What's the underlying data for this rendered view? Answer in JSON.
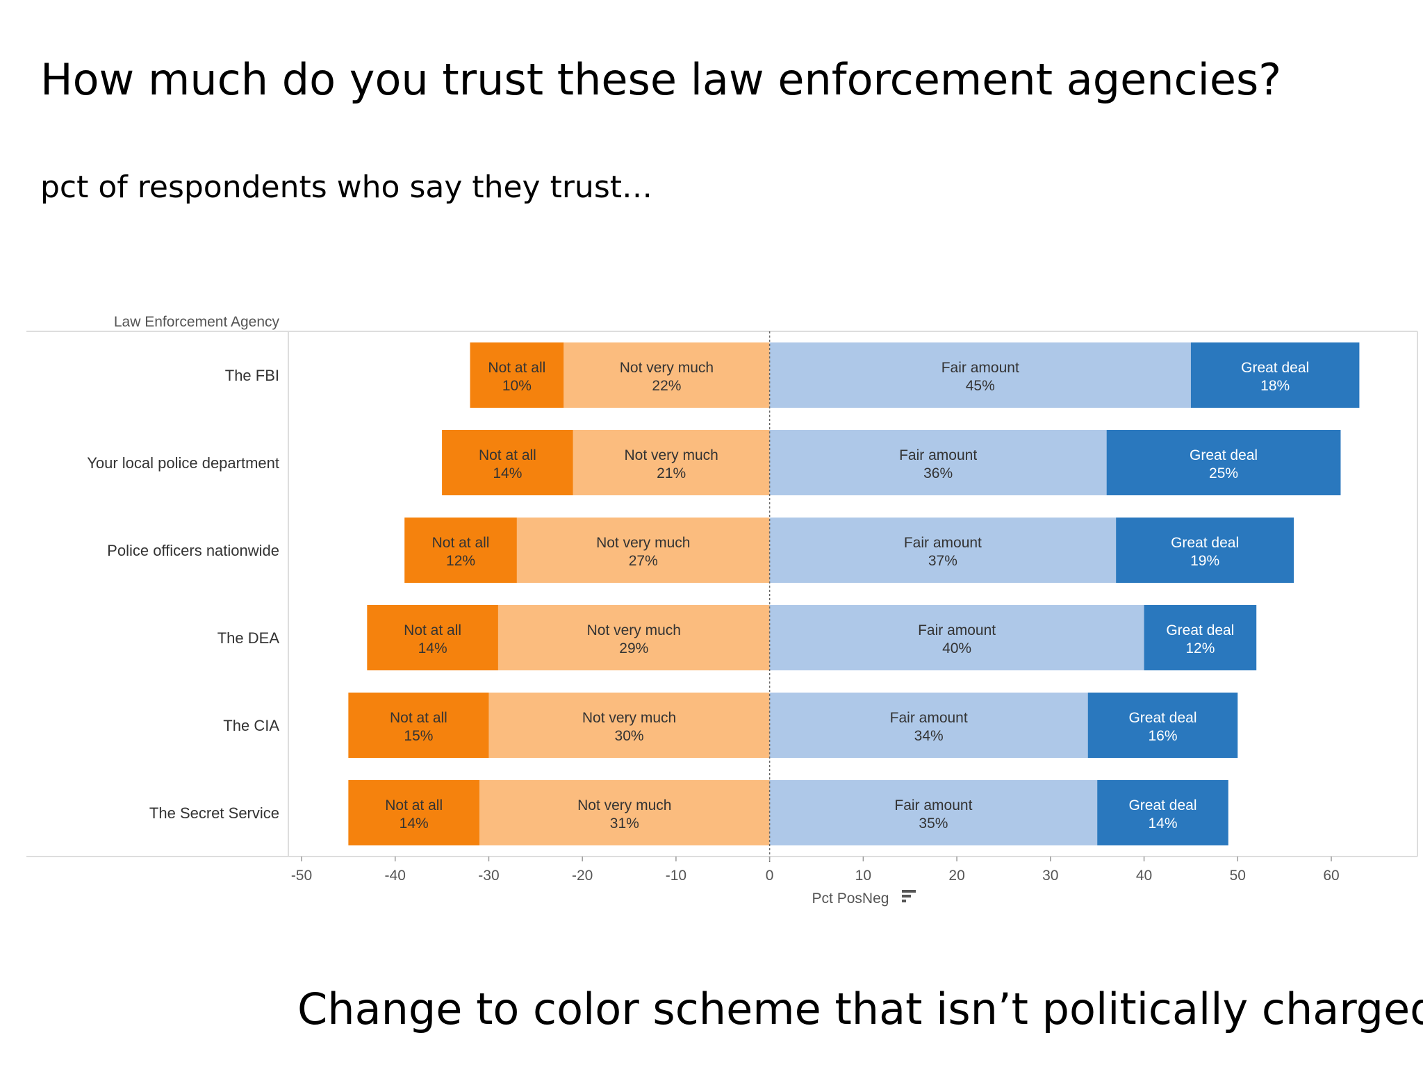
{
  "slide": {
    "title": "How much do you trust these law enforcement agencies?",
    "subtitle": "pct of respondents who say they trust…",
    "note": "Change to color scheme that isn’t politically charged"
  },
  "chart_data": {
    "type": "bar",
    "orientation": "horizontal-diverging-stacked",
    "row_header": "Law Enforcement Agency",
    "xlabel": "Pct PosNeg",
    "xlim": [
      -50,
      60
    ],
    "xticks": [
      -50,
      -40,
      -30,
      -20,
      -10,
      0,
      10,
      20,
      30,
      40,
      50,
      60
    ],
    "categories": [
      "The FBI",
      "Your local police department",
      "Police officers nationwide",
      "The DEA",
      "The CIA",
      "The Secret Service"
    ],
    "series": [
      {
        "name": "Not at all",
        "side": "negative",
        "color": "#f5820d",
        "values": [
          10,
          14,
          12,
          14,
          15,
          14
        ]
      },
      {
        "name": "Not very much",
        "side": "negative",
        "color": "#fbbc7e",
        "values": [
          22,
          21,
          27,
          29,
          30,
          31
        ]
      },
      {
        "name": "Fair amount",
        "side": "positive",
        "color": "#aec8e8",
        "values": [
          45,
          36,
          37,
          40,
          34,
          35
        ]
      },
      {
        "name": "Great deal",
        "side": "positive",
        "color": "#2a78be",
        "values": [
          18,
          25,
          19,
          12,
          16,
          14
        ]
      }
    ],
    "negative_stack_order": [
      "Not very much",
      "Not at all"
    ],
    "positive_stack_order": [
      "Fair amount",
      "Great deal"
    ],
    "colors": {
      "grid_zero_line": "#666666",
      "frame": "#dddddd",
      "label_dark": "#333333",
      "label_light": "#ffffff"
    }
  }
}
